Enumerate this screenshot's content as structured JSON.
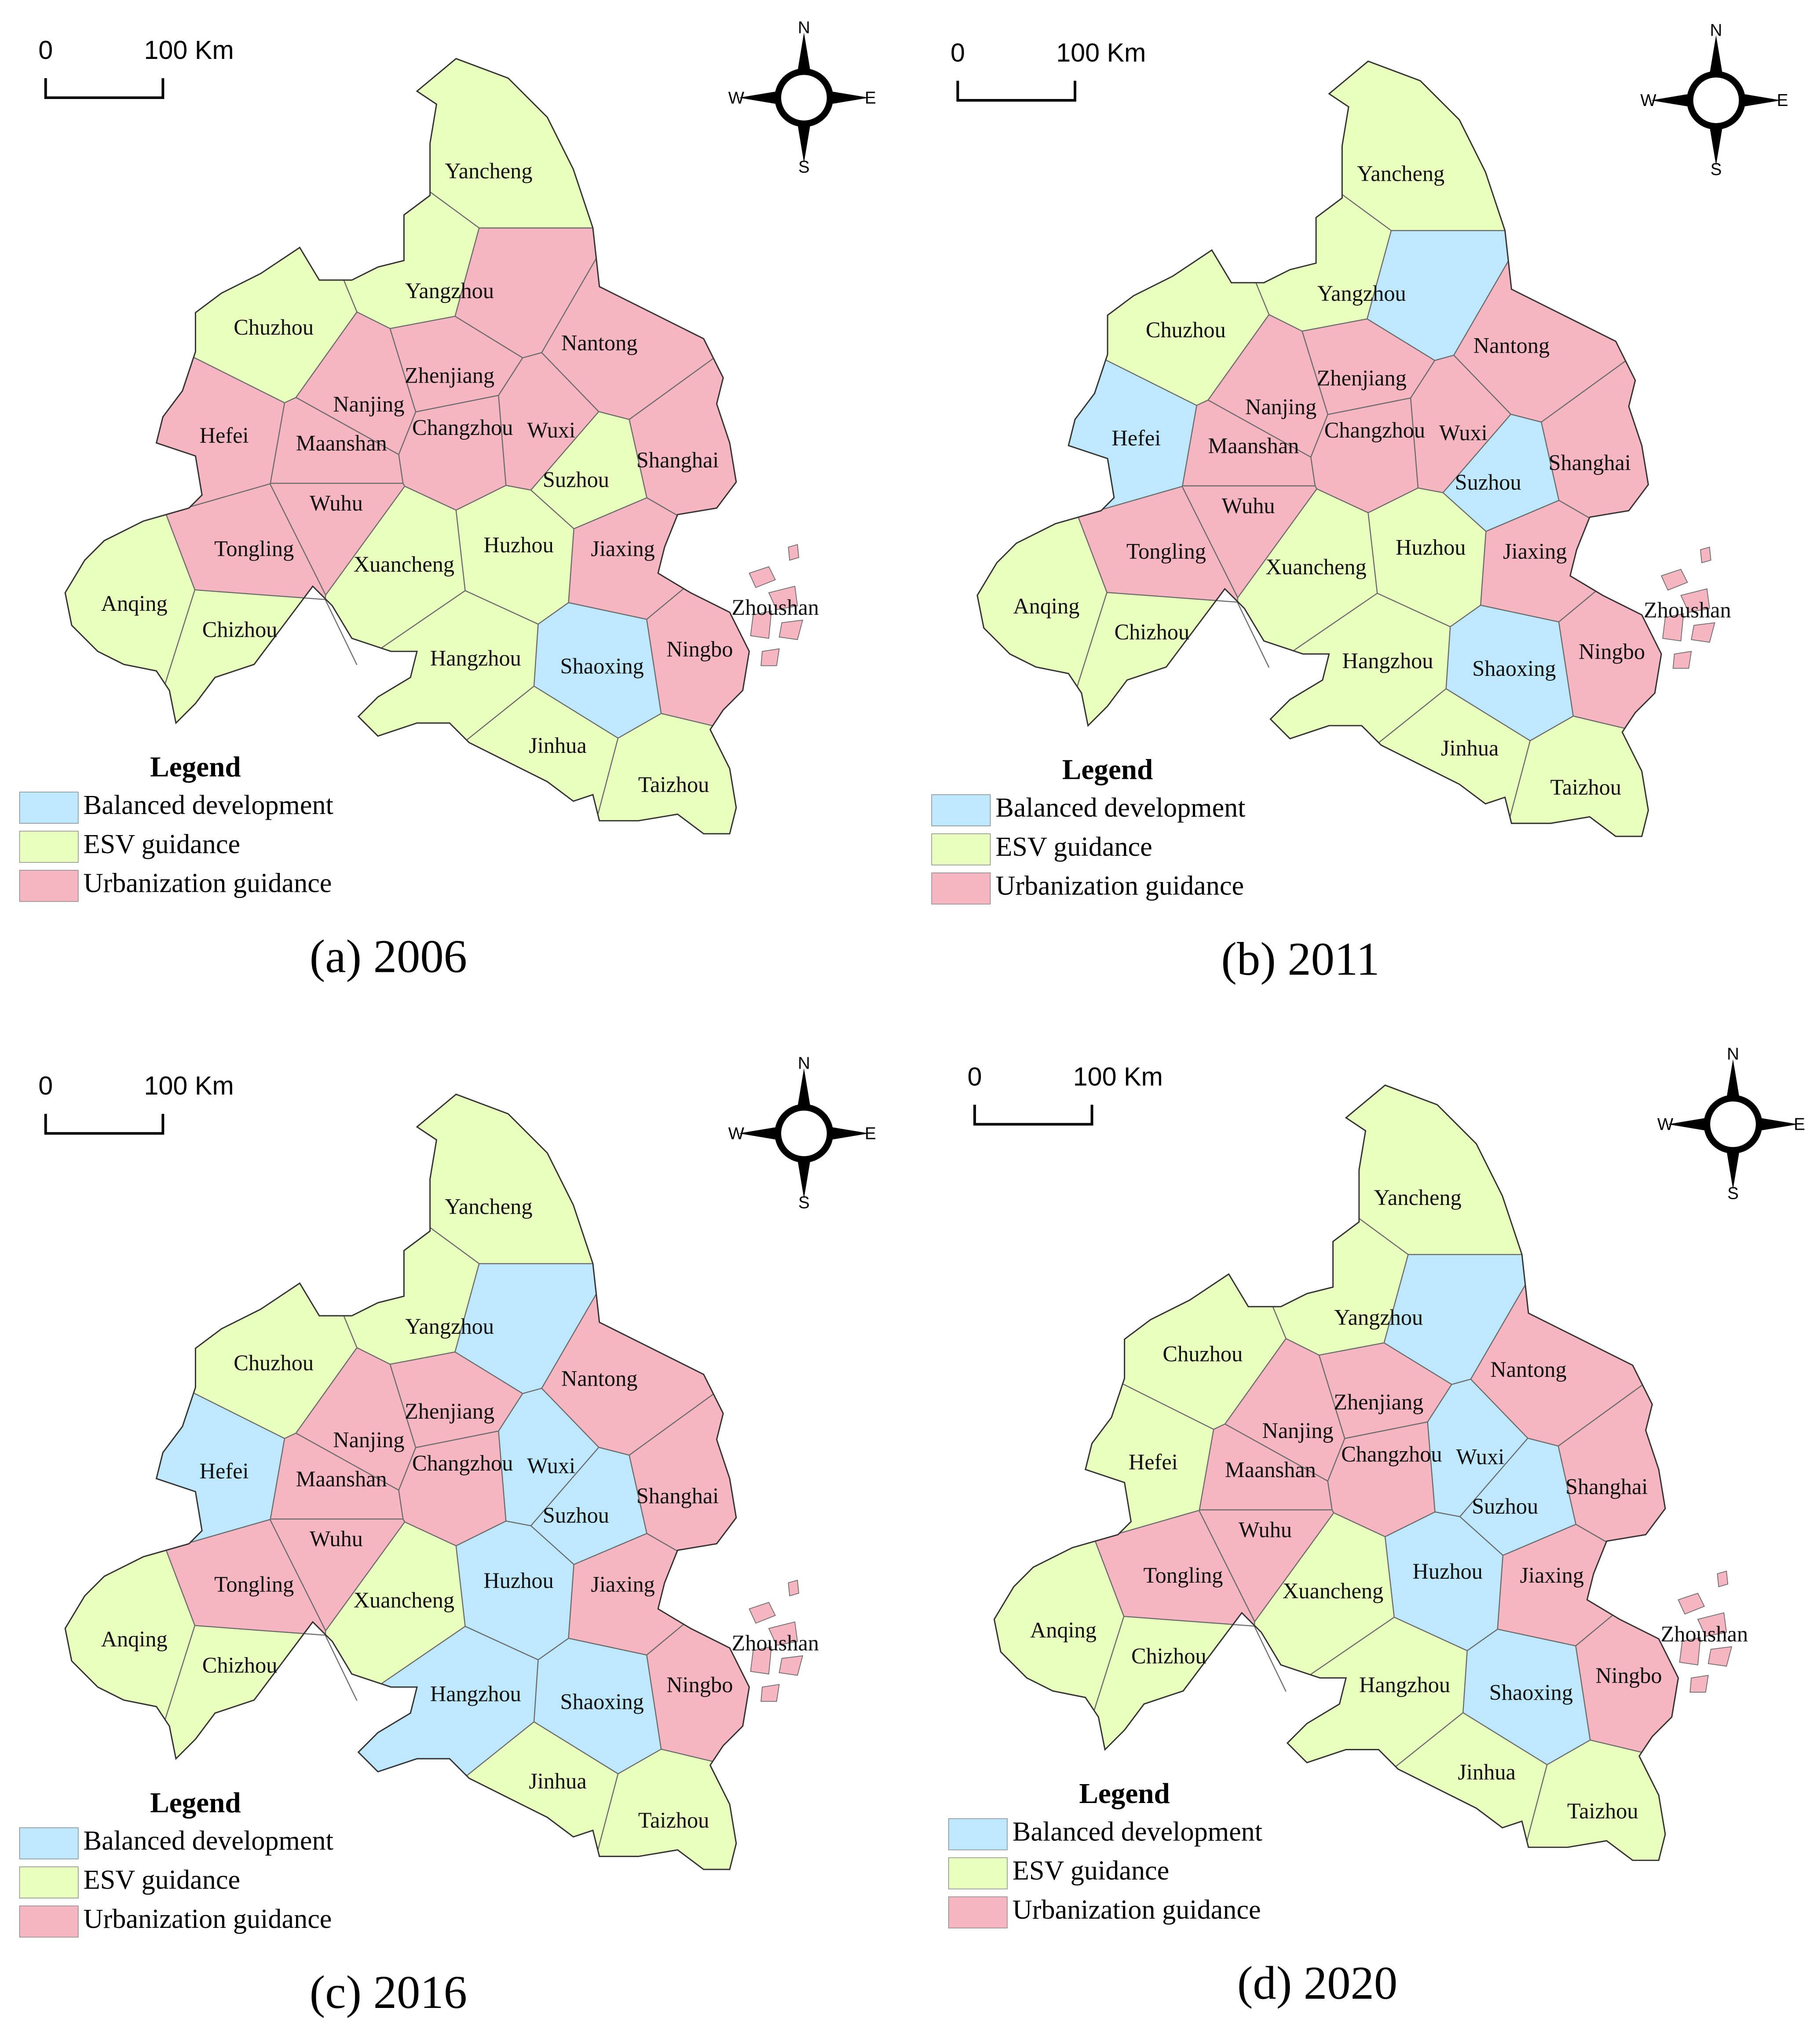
{
  "panels": [
    {
      "caption": "(a) 2006",
      "scale_labels": [
        "0",
        "100 Km"
      ],
      "compass": {
        "n": "N",
        "w": "W",
        "e": "E",
        "s": "S"
      },
      "legend": {
        "title": "Legend",
        "items": [
          {
            "label": "Balanced development",
            "color": "#bee8ff"
          },
          {
            "label": "ESV guidance",
            "color": "#e9ffbe"
          },
          {
            "label": "Urbanization guidance",
            "color": "#f5b6c1"
          }
        ]
      },
      "cities": [
        {
          "name": "Yancheng",
          "color": "#e9ffbe"
        },
        {
          "name": "Yangzhou",
          "color": "#e9ffbe"
        },
        {
          "name": null,
          "color": "#f5b6c1"
        },
        {
          "name": "Chuzhou",
          "color": "#e9ffbe"
        },
        {
          "name": "Nantong",
          "color": "#f5b6c1"
        },
        {
          "name": "Zhenjiang",
          "color": "#f5b6c1"
        },
        {
          "name": "Nanjing",
          "color": "#f5b6c1"
        },
        {
          "name": "Hefei",
          "color": "#f5b6c1"
        },
        {
          "name": "Maanshan",
          "color": "#f5b6c1"
        },
        {
          "name": "Changzhou",
          "color": "#f5b6c1"
        },
        {
          "name": "Wuxi",
          "color": "#f5b6c1"
        },
        {
          "name": "Suzhou",
          "color": "#e9ffbe"
        },
        {
          "name": "Shanghai",
          "color": "#f5b6c1"
        },
        {
          "name": "Wuhu",
          "color": "#f5b6c1"
        },
        {
          "name": "Tongling",
          "color": "#f5b6c1"
        },
        {
          "name": "Xuancheng",
          "color": "#e9ffbe"
        },
        {
          "name": "Huzhou",
          "color": "#e9ffbe"
        },
        {
          "name": "Jiaxing",
          "color": "#f5b6c1"
        },
        {
          "name": "Anqing",
          "color": "#e9ffbe"
        },
        {
          "name": "Chizhou",
          "color": "#e9ffbe"
        },
        {
          "name": "Zhoushan",
          "color": "#f5b6c1"
        },
        {
          "name": "Hangzhou",
          "color": "#e9ffbe"
        },
        {
          "name": "Shaoxing",
          "color": "#bee8ff"
        },
        {
          "name": "Ningbo",
          "color": "#f5b6c1"
        },
        {
          "name": "Jinhua",
          "color": "#e9ffbe"
        },
        {
          "name": "Taizhou",
          "color": "#e9ffbe"
        }
      ]
    },
    {
      "caption": "(b) 2011",
      "scale_labels": [
        "0",
        "100 Km"
      ],
      "compass": {
        "n": "N",
        "w": "W",
        "e": "E",
        "s": "S"
      },
      "legend": {
        "title": "Legend",
        "items": [
          {
            "label": "Balanced development",
            "color": "#bee8ff"
          },
          {
            "label": "ESV guidance",
            "color": "#e9ffbe"
          },
          {
            "label": "Urbanization guidance",
            "color": "#f5b6c1"
          }
        ]
      },
      "cities": [
        {
          "name": "Yancheng",
          "color": "#e9ffbe"
        },
        {
          "name": "Yangzhou",
          "color": "#e9ffbe"
        },
        {
          "name": null,
          "color": "#bee8ff"
        },
        {
          "name": "Chuzhou",
          "color": "#e9ffbe"
        },
        {
          "name": "Nantong",
          "color": "#f5b6c1"
        },
        {
          "name": "Zhenjiang",
          "color": "#f5b6c1"
        },
        {
          "name": "Nanjing",
          "color": "#f5b6c1"
        },
        {
          "name": "Hefei",
          "color": "#bee8ff"
        },
        {
          "name": "Maanshan",
          "color": "#f5b6c1"
        },
        {
          "name": "Changzhou",
          "color": "#f5b6c1"
        },
        {
          "name": "Wuxi",
          "color": "#f5b6c1"
        },
        {
          "name": "Suzhou",
          "color": "#bee8ff"
        },
        {
          "name": "Shanghai",
          "color": "#f5b6c1"
        },
        {
          "name": "Wuhu",
          "color": "#f5b6c1"
        },
        {
          "name": "Tongling",
          "color": "#f5b6c1"
        },
        {
          "name": "Xuancheng",
          "color": "#e9ffbe"
        },
        {
          "name": "Huzhou",
          "color": "#e9ffbe"
        },
        {
          "name": "Jiaxing",
          "color": "#f5b6c1"
        },
        {
          "name": "Anqing",
          "color": "#e9ffbe"
        },
        {
          "name": "Chizhou",
          "color": "#e9ffbe"
        },
        {
          "name": "Zhoushan",
          "color": "#f5b6c1"
        },
        {
          "name": "Hangzhou",
          "color": "#e9ffbe"
        },
        {
          "name": "Shaoxing",
          "color": "#bee8ff"
        },
        {
          "name": "Ningbo",
          "color": "#f5b6c1"
        },
        {
          "name": "Jinhua",
          "color": "#e9ffbe"
        },
        {
          "name": "Taizhou",
          "color": "#e9ffbe"
        }
      ]
    },
    {
      "caption": "(c) 2016",
      "scale_labels": [
        "0",
        "100 Km"
      ],
      "compass": {
        "n": "N",
        "w": "W",
        "e": "E",
        "s": "S"
      },
      "legend": {
        "title": "Legend",
        "items": [
          {
            "label": "Balanced development",
            "color": "#bee8ff"
          },
          {
            "label": "ESV guidance",
            "color": "#e9ffbe"
          },
          {
            "label": "Urbanization guidance",
            "color": "#f5b6c1"
          }
        ]
      },
      "cities": [
        {
          "name": "Yancheng",
          "color": "#e9ffbe"
        },
        {
          "name": "Yangzhou",
          "color": "#e9ffbe"
        },
        {
          "name": null,
          "color": "#bee8ff"
        },
        {
          "name": "Chuzhou",
          "color": "#e9ffbe"
        },
        {
          "name": "Nantong",
          "color": "#f5b6c1"
        },
        {
          "name": "Zhenjiang",
          "color": "#f5b6c1"
        },
        {
          "name": "Nanjing",
          "color": "#f5b6c1"
        },
        {
          "name": "Hefei",
          "color": "#bee8ff"
        },
        {
          "name": "Maanshan",
          "color": "#f5b6c1"
        },
        {
          "name": "Changzhou",
          "color": "#f5b6c1"
        },
        {
          "name": "Wuxi",
          "color": "#bee8ff"
        },
        {
          "name": "Suzhou",
          "color": "#bee8ff"
        },
        {
          "name": "Shanghai",
          "color": "#f5b6c1"
        },
        {
          "name": "Wuhu",
          "color": "#f5b6c1"
        },
        {
          "name": "Tongling",
          "color": "#f5b6c1"
        },
        {
          "name": "Xuancheng",
          "color": "#e9ffbe"
        },
        {
          "name": "Huzhou",
          "color": "#bee8ff"
        },
        {
          "name": "Jiaxing",
          "color": "#f5b6c1"
        },
        {
          "name": "Anqing",
          "color": "#e9ffbe"
        },
        {
          "name": "Chizhou",
          "color": "#e9ffbe"
        },
        {
          "name": "Zhoushan",
          "color": "#f5b6c1"
        },
        {
          "name": "Hangzhou",
          "color": "#bee8ff"
        },
        {
          "name": "Shaoxing",
          "color": "#bee8ff"
        },
        {
          "name": "Ningbo",
          "color": "#f5b6c1"
        },
        {
          "name": "Jinhua",
          "color": "#e9ffbe"
        },
        {
          "name": "Taizhou",
          "color": "#e9ffbe"
        }
      ]
    },
    {
      "caption": "(d) 2020",
      "scale_labels": [
        "0",
        "100 Km"
      ],
      "compass": {
        "n": "N",
        "w": "W",
        "e": "E",
        "s": "S"
      },
      "legend": {
        "title": "Legend",
        "items": [
          {
            "label": "Balanced development",
            "color": "#bee8ff"
          },
          {
            "label": "ESV guidance",
            "color": "#e9ffbe"
          },
          {
            "label": "Urbanization guidance",
            "color": "#f5b6c1"
          }
        ]
      },
      "cities": [
        {
          "name": "Yancheng",
          "color": "#e9ffbe"
        },
        {
          "name": "Yangzhou",
          "color": "#e9ffbe"
        },
        {
          "name": null,
          "color": "#bee8ff"
        },
        {
          "name": "Chuzhou",
          "color": "#e9ffbe"
        },
        {
          "name": "Nantong",
          "color": "#f5b6c1"
        },
        {
          "name": "Zhenjiang",
          "color": "#f5b6c1"
        },
        {
          "name": "Nanjing",
          "color": "#f5b6c1"
        },
        {
          "name": "Hefei",
          "color": "#e9ffbe"
        },
        {
          "name": "Maanshan",
          "color": "#f5b6c1"
        },
        {
          "name": "Changzhou",
          "color": "#f5b6c1"
        },
        {
          "name": "Wuxi",
          "color": "#bee8ff"
        },
        {
          "name": "Suzhou",
          "color": "#bee8ff"
        },
        {
          "name": "Shanghai",
          "color": "#f5b6c1"
        },
        {
          "name": "Wuhu",
          "color": "#f5b6c1"
        },
        {
          "name": "Tongling",
          "color": "#f5b6c1"
        },
        {
          "name": "Xuancheng",
          "color": "#e9ffbe"
        },
        {
          "name": "Huzhou",
          "color": "#bee8ff"
        },
        {
          "name": "Jiaxing",
          "color": "#f5b6c1"
        },
        {
          "name": "Anqing",
          "color": "#e9ffbe"
        },
        {
          "name": "Chizhou",
          "color": "#e9ffbe"
        },
        {
          "name": "Zhoushan",
          "color": "#f5b6c1"
        },
        {
          "name": "Hangzhou",
          "color": "#e9ffbe"
        },
        {
          "name": "Shaoxing",
          "color": "#bee8ff"
        },
        {
          "name": "Ningbo",
          "color": "#f5b6c1"
        },
        {
          "name": "Jinhua",
          "color": "#e9ffbe"
        },
        {
          "name": "Taizhou",
          "color": "#e9ffbe"
        }
      ]
    }
  ]
}
